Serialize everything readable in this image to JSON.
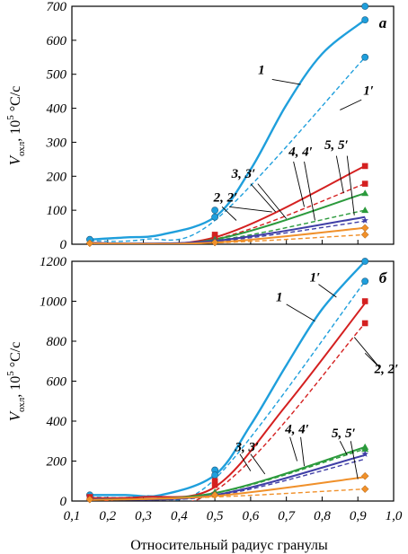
{
  "chart_data": [
    {
      "type": "line",
      "panel_label": "а",
      "ylabel_main": "V",
      "ylabel_sub": "охл",
      "ylabel_unit": ", 10",
      "ylabel_exp": "5",
      "ylabel_tail": " °C/с",
      "xlim": [
        0.1,
        1.0
      ],
      "ylim": [
        0,
        700
      ],
      "yticks": [
        0,
        100,
        200,
        300,
        400,
        500,
        600,
        700
      ],
      "series": [
        {
          "name": "1",
          "color": "#1f9fdc",
          "dashed": false,
          "x": [
            0.15,
            0.25,
            0.35,
            0.5,
            0.6,
            0.7,
            0.8,
            0.92
          ],
          "y": [
            14,
            20,
            28,
            80,
            220,
            410,
            560,
            660
          ]
        },
        {
          "name": "1'",
          "color": "#1f9fdc",
          "dashed": true,
          "x": [
            0.15,
            0.3,
            0.5,
            0.92
          ],
          "y": [
            10,
            14,
            70,
            550
          ]
        },
        {
          "name": "2",
          "color": "#d42020",
          "dashed": false,
          "x": [
            0.15,
            0.5,
            0.92
          ],
          "y": [
            4,
            20,
            230
          ]
        },
        {
          "name": "2'",
          "color": "#d42020",
          "dashed": true,
          "x": [
            0.15,
            0.5,
            0.92
          ],
          "y": [
            4,
            15,
            178
          ]
        },
        {
          "name": "3",
          "color": "#2b9a3c",
          "dashed": false,
          "x": [
            0.15,
            0.5,
            0.92
          ],
          "y": [
            3,
            14,
            150
          ]
        },
        {
          "name": "3'",
          "color": "#2b9a3c",
          "dashed": true,
          "x": [
            0.15,
            0.5,
            0.92
          ],
          "y": [
            3,
            11,
            100
          ]
        },
        {
          "name": "4",
          "color": "#3f3ea6",
          "dashed": false,
          "x": [
            0.15,
            0.5,
            0.92
          ],
          "y": [
            3,
            10,
            80
          ]
        },
        {
          "name": "4'",
          "color": "#3f3ea6",
          "dashed": true,
          "x": [
            0.15,
            0.5,
            0.92
          ],
          "y": [
            3,
            8,
            68
          ]
        },
        {
          "name": "5",
          "color": "#f0902a",
          "dashed": false,
          "x": [
            0.15,
            0.5,
            0.92
          ],
          "y": [
            2,
            5,
            48
          ]
        },
        {
          "name": "5'",
          "color": "#f0902a",
          "dashed": true,
          "x": [
            0.15,
            0.5,
            0.92
          ],
          "y": [
            2,
            4,
            28
          ]
        }
      ],
      "markers": [
        {
          "shape": "circle",
          "color": "#1f9fdc",
          "x": [
            0.15,
            0.5,
            0.5,
            0.92,
            0.92,
            0.92
          ],
          "y": [
            14,
            100,
            80,
            700,
            660,
            550
          ]
        },
        {
          "shape": "square",
          "color": "#d42020",
          "x": [
            0.5,
            0.5,
            0.92,
            0.92
          ],
          "y": [
            28,
            20,
            230,
            178
          ]
        },
        {
          "shape": "triangle",
          "color": "#2b9a3c",
          "x": [
            0.5,
            0.92,
            0.92
          ],
          "y": [
            14,
            150,
            100
          ]
        },
        {
          "shape": "star",
          "color": "#3f3ea6",
          "x": [
            0.5,
            0.92
          ],
          "y": [
            10,
            70
          ]
        },
        {
          "shape": "diamond",
          "color": "#f0902a",
          "x": [
            0.15,
            0.5,
            0.92,
            0.92
          ],
          "y": [
            3,
            5,
            48,
            28
          ]
        }
      ],
      "annotations": [
        {
          "text": "1",
          "x": 0.63,
          "y": 500
        },
        {
          "text": "1′",
          "x": 0.93,
          "y": 440
        },
        {
          "text": "5, 5′",
          "x": 0.84,
          "y": 280
        },
        {
          "text": "4, 4′",
          "x": 0.74,
          "y": 260
        },
        {
          "text": "3, 3′",
          "x": 0.58,
          "y": 195
        },
        {
          "text": "2, 2′",
          "x": 0.53,
          "y": 125
        }
      ]
    },
    {
      "type": "line",
      "panel_label": "б",
      "ylabel_main": "V",
      "ylabel_sub": "охл",
      "ylabel_unit": ", 10",
      "ylabel_exp": "5",
      "ylabel_tail": " °C/с",
      "xlabel": "Относительный радиус гранулы",
      "xlim": [
        0.1,
        1.0
      ],
      "ylim": [
        0,
        1200
      ],
      "xticks": [
        "0,1",
        "0,2",
        "0,3",
        "0,4",
        "0,5",
        "0,6",
        "0,7",
        "0,8",
        "0,9",
        "1,0"
      ],
      "yticks": [
        0,
        200,
        400,
        600,
        800,
        1000,
        1200
      ],
      "series": [
        {
          "name": "1",
          "color": "#1f9fdc",
          "dashed": false,
          "x": [
            0.15,
            0.25,
            0.35,
            0.5,
            0.6,
            0.7,
            0.8,
            0.92
          ],
          "y": [
            30,
            30,
            30,
            130,
            380,
            680,
            960,
            1200
          ]
        },
        {
          "name": "1'",
          "color": "#1f9fdc",
          "dashed": true,
          "x": [
            0.15,
            0.3,
            0.5,
            0.92
          ],
          "y": [
            20,
            25,
            110,
            1100
          ]
        },
        {
          "name": "2",
          "color": "#d42020",
          "dashed": false,
          "x": [
            0.15,
            0.3,
            0.5,
            0.7,
            0.92
          ],
          "y": [
            15,
            20,
            70,
            480,
            990
          ]
        },
        {
          "name": "2'",
          "color": "#d42020",
          "dashed": true,
          "x": [
            0.15,
            0.5,
            0.92
          ],
          "y": [
            10,
            50,
            890
          ]
        },
        {
          "name": "3",
          "color": "#2b9a3c",
          "dashed": false,
          "x": [
            0.15,
            0.5,
            0.92
          ],
          "y": [
            8,
            40,
            270
          ]
        },
        {
          "name": "3'",
          "color": "#2b9a3c",
          "dashed": true,
          "x": [
            0.15,
            0.5,
            0.92
          ],
          "y": [
            8,
            38,
            260
          ]
        },
        {
          "name": "4",
          "color": "#3f3ea6",
          "dashed": false,
          "x": [
            0.15,
            0.5,
            0.92
          ],
          "y": [
            8,
            30,
            230
          ]
        },
        {
          "name": "4'",
          "color": "#3f3ea6",
          "dashed": true,
          "x": [
            0.15,
            0.5,
            0.92
          ],
          "y": [
            8,
            25,
            210
          ]
        },
        {
          "name": "5",
          "color": "#f0902a",
          "dashed": false,
          "x": [
            0.15,
            0.5,
            0.92
          ],
          "y": [
            5,
            25,
            120
          ]
        },
        {
          "name": "5'",
          "color": "#f0902a",
          "dashed": true,
          "x": [
            0.15,
            0.5,
            0.92
          ],
          "y": [
            5,
            20,
            60
          ]
        }
      ],
      "markers": [
        {
          "shape": "circle",
          "color": "#1f9fdc",
          "x": [
            0.15,
            0.5,
            0.5,
            0.92,
            0.92
          ],
          "y": [
            30,
            155,
            130,
            1200,
            1100
          ]
        },
        {
          "shape": "square",
          "color": "#d42020",
          "x": [
            0.15,
            0.5,
            0.5,
            0.92,
            0.92
          ],
          "y": [
            20,
            100,
            80,
            1000,
            890
          ]
        },
        {
          "shape": "triangle",
          "color": "#2b9a3c",
          "x": [
            0.5,
            0.92,
            0.92
          ],
          "y": [
            45,
            270,
            260
          ]
        },
        {
          "shape": "star",
          "color": "#3f3ea6",
          "x": [
            0.5,
            0.92
          ],
          "y": [
            35,
            235
          ]
        },
        {
          "shape": "diamond",
          "color": "#f0902a",
          "x": [
            0.15,
            0.5,
            0.92,
            0.92
          ],
          "y": [
            8,
            30,
            125,
            60
          ]
        }
      ],
      "annotations": [
        {
          "text": "1′",
          "x": 0.78,
          "y": 1100
        },
        {
          "text": "1",
          "x": 0.68,
          "y": 1000
        },
        {
          "text": "2, 2′",
          "x": 0.98,
          "y": 640
        },
        {
          "text": "5, 5′",
          "x": 0.86,
          "y": 320
        },
        {
          "text": "4, 4′",
          "x": 0.73,
          "y": 340
        },
        {
          "text": "3, 3′",
          "x": 0.59,
          "y": 250
        }
      ]
    }
  ]
}
